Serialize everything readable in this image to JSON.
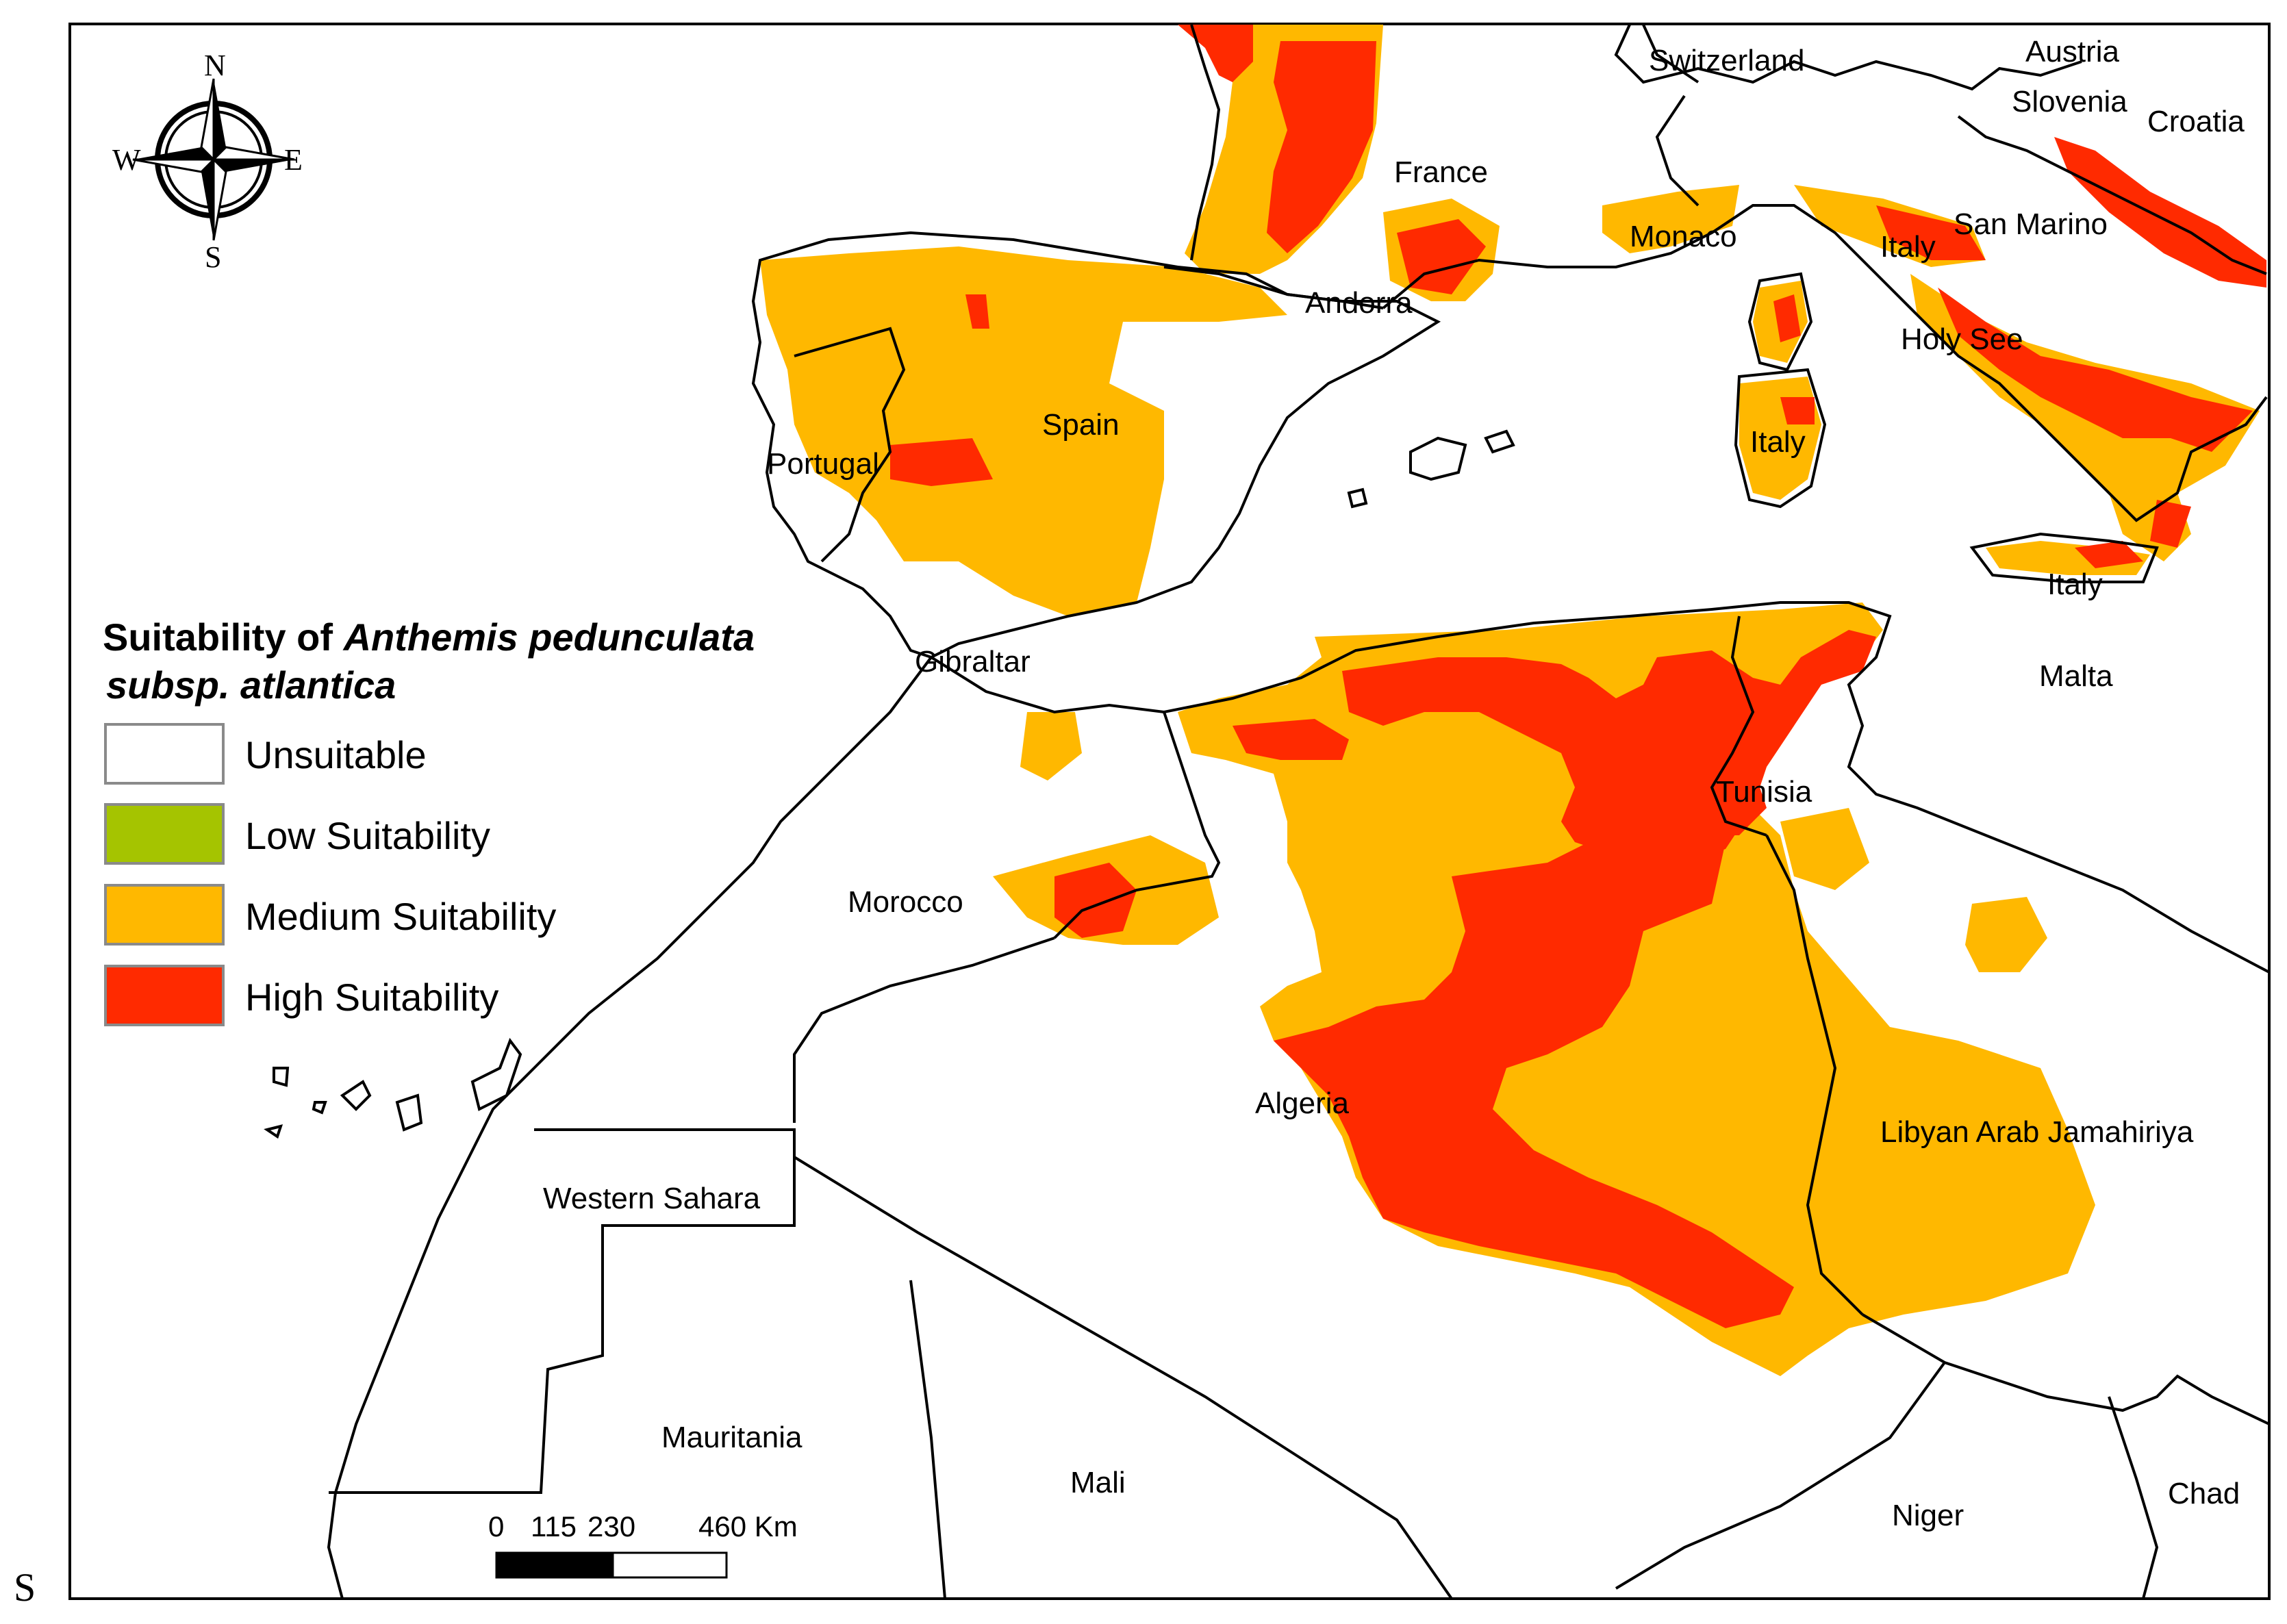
{
  "legend": {
    "title_prefix": "Suitability of ",
    "title_species": "Anthemis pedunculata",
    "title_line2": "subsp. atlantica",
    "items": [
      {
        "label": "Unsuitable",
        "color": "#ffffff"
      },
      {
        "label": "Low Suitability",
        "color": "#a5c400"
      },
      {
        "label": "Medium Suitability",
        "color": "#ffb800"
      },
      {
        "label": "High Suitability",
        "color": "#ff2a00"
      }
    ]
  },
  "compass": {
    "n": "N",
    "s": "S",
    "e": "E",
    "w": "W"
  },
  "scale_bar": {
    "t0": "0",
    "t1": "115",
    "t2": "230",
    "t3": "460 Km"
  },
  "countries": {
    "switzerland": "Switzerland",
    "austria": "Austria",
    "slovenia": "Slovenia",
    "croatia": "Croatia",
    "france": "France",
    "monaco": "Monaco",
    "italy_north": "Italy",
    "san_marino": "San Marino",
    "andorra": "Andorra",
    "holy_see": "Holy See",
    "italy_sardinia": "Italy",
    "spain": "Spain",
    "portugal": "Portugal",
    "italy_sicily": "Italy",
    "gibraltar": "Gibraltar",
    "malta": "Malta",
    "tunisia": "Tunisia",
    "morocco": "Morocco",
    "algeria": "Algeria",
    "libya": "Libyan Arab Jamahiriya",
    "western_sahara": "Western Sahara",
    "mauritania": "Mauritania",
    "mali": "Mali",
    "niger": "Niger",
    "chad": "Chad"
  },
  "stray_glyph": "S"
}
